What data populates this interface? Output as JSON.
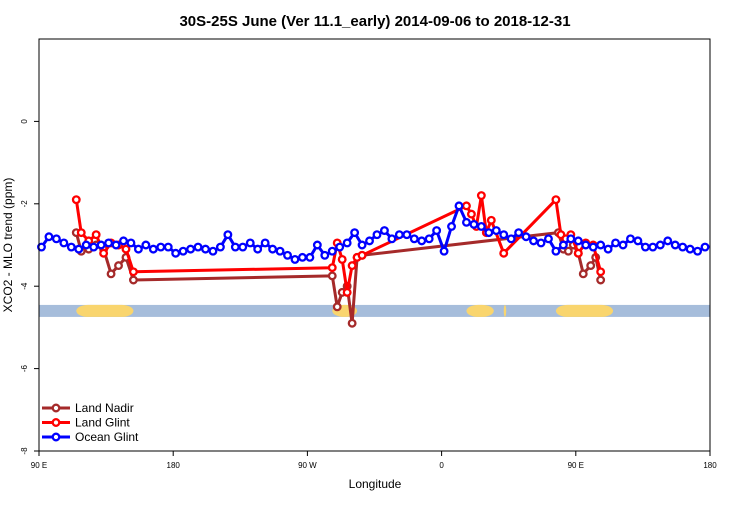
{
  "chart_data": {
    "type": "line",
    "title": "30S-25S June (Ver 11.1_early)   2014-09-06 to 2018-12-31",
    "xlabel": "Longitude",
    "ylabel": "XCO2 - MLO trend (ppm)",
    "xlim": [
      -90,
      180
    ],
    "ylim": [
      -8,
      2
    ],
    "x_ticks": [
      {
        "value": -90,
        "label": "90 E"
      },
      {
        "value": -36,
        "label": "180"
      },
      {
        "value": 18,
        "label": "90 W"
      },
      {
        "value": 72,
        "label": "0"
      },
      {
        "value": 126,
        "label": "90 E"
      },
      {
        "value": 180,
        "label": "180"
      }
    ],
    "y_ticks": [
      {
        "value": -8,
        "label": "-8"
      },
      {
        "value": -6,
        "label": "-6"
      },
      {
        "value": -4,
        "label": "-4"
      },
      {
        "value": -2,
        "label": "-2"
      },
      {
        "value": 0,
        "label": "0"
      }
    ],
    "legend_position": "bottom-left",
    "land_band": {
      "y": -4.6,
      "base_color": "#a6bddb",
      "land_color": "#f9d56e",
      "land_ranges": [
        [
          -75,
          -52
        ],
        [
          28,
          38
        ],
        [
          82,
          93
        ],
        [
          97,
          98
        ],
        [
          118,
          141
        ]
      ]
    },
    "series": [
      {
        "name": "Land Nadir",
        "color": "#a52a2a",
        "x": [
          -75,
          -73,
          -70,
          -67,
          -64,
          -61,
          -58,
          -55,
          -52,
          28,
          30,
          32,
          34,
          36,
          38,
          40,
          119,
          121,
          123,
          125,
          127,
          129,
          132,
          134,
          136
        ],
        "y": [
          -2.7,
          -3.15,
          -3.1,
          -3.0,
          -3.1,
          -3.7,
          -3.5,
          -3.3,
          -3.85,
          -3.75,
          -4.5,
          -4.15,
          -4.0,
          -4.9,
          -3.3,
          -3.25,
          -2.7,
          -3.1,
          -3.15,
          -3.0,
          -3.2,
          -3.7,
          -3.5,
          -3.3,
          -3.85
        ]
      },
      {
        "name": "Land Glint",
        "color": "#ff0000",
        "x": [
          -75,
          -73,
          -70,
          -67,
          -64,
          -61,
          -58,
          -55,
          -52,
          28,
          30,
          32,
          34,
          36,
          38,
          40,
          82,
          84,
          86,
          88,
          90,
          92,
          97,
          118,
          120,
          122,
          124,
          127,
          130,
          133,
          136
        ],
        "y": [
          -1.9,
          -2.7,
          -2.9,
          -2.75,
          -3.2,
          -2.95,
          -3.0,
          -3.1,
          -3.65,
          -3.55,
          -2.95,
          -3.35,
          -4.15,
          -3.5,
          -3.3,
          -3.25,
          -2.05,
          -2.25,
          -2.55,
          -1.8,
          -2.7,
          -2.4,
          -3.2,
          -1.9,
          -2.75,
          -2.85,
          -2.75,
          -3.2,
          -2.95,
          -3.0,
          -3.65
        ]
      },
      {
        "name": "Ocean Glint",
        "color": "#0000ff",
        "x": [
          -89,
          -86,
          -83,
          -80,
          -77,
          -74,
          -71,
          -68,
          -65,
          -62,
          -59,
          -56,
          -53,
          -50,
          -47,
          -44,
          -41,
          -38,
          -35,
          -32,
          -29,
          -26,
          -23,
          -20,
          -17,
          -14,
          -11,
          -8,
          -5,
          -2,
          1,
          4,
          7,
          10,
          13,
          16,
          19,
          22,
          25,
          28,
          31,
          34,
          37,
          40,
          43,
          46,
          49,
          52,
          55,
          58,
          61,
          64,
          67,
          70,
          73,
          76,
          79,
          82,
          85,
          88,
          91,
          94,
          97,
          100,
          103,
          106,
          109,
          112,
          115,
          118,
          121,
          124,
          127,
          130,
          133,
          136,
          139,
          142,
          145,
          148,
          151,
          154,
          157,
          160,
          163,
          166,
          169,
          172,
          175,
          178
        ],
        "y": [
          -3.05,
          -2.8,
          -2.85,
          -2.95,
          -3.05,
          -3.1,
          -3.0,
          -3.05,
          -3.0,
          -2.95,
          -3.0,
          -2.9,
          -2.95,
          -3.1,
          -3.0,
          -3.1,
          -3.05,
          -3.05,
          -3.2,
          -3.15,
          -3.1,
          -3.05,
          -3.1,
          -3.15,
          -3.05,
          -2.75,
          -3.05,
          -3.05,
          -2.95,
          -3.1,
          -2.95,
          -3.1,
          -3.15,
          -3.25,
          -3.35,
          -3.3,
          -3.3,
          -3.0,
          -3.25,
          -3.15,
          -3.05,
          -2.95,
          -2.7,
          -3.0,
          -2.9,
          -2.75,
          -2.65,
          -2.85,
          -2.75,
          -2.75,
          -2.85,
          -2.9,
          -2.85,
          -2.65,
          -3.15,
          -2.55,
          -2.05,
          -2.45,
          -2.5,
          -2.55,
          -2.7,
          -2.65,
          -2.75,
          -2.85,
          -2.7,
          -2.8,
          -2.9,
          -2.95,
          -2.85,
          -3.15,
          -3.0,
          -2.85,
          -2.9,
          -3.0,
          -3.05,
          -3.0,
          -3.1,
          -2.95,
          -3.0,
          -2.85,
          -2.9,
          -3.05,
          -3.05,
          -3.0,
          -2.9,
          -3.0,
          -3.05,
          -3.1,
          -3.15,
          -3.05
        ]
      }
    ]
  }
}
